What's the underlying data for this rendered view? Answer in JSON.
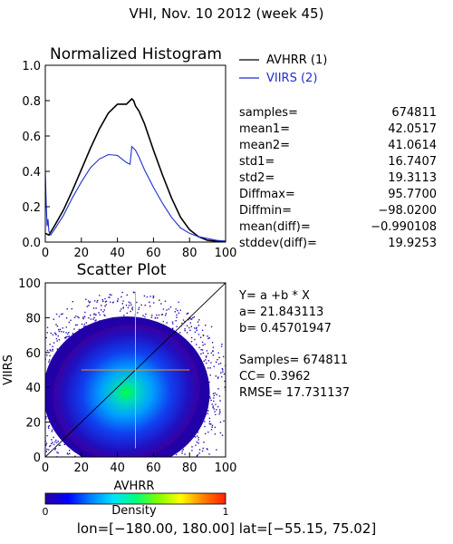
{
  "page_title": "VHI,  Nov. 10 2012 (week 45)",
  "chart_data": [
    {
      "type": "line",
      "title": "Normalized Histogram",
      "xlim": [
        0,
        100
      ],
      "ylim": [
        0,
        1.0
      ],
      "x_ticks": [
        "0",
        "20",
        "40",
        "60",
        "80",
        "100"
      ],
      "y_ticks": [
        "0.0",
        "0.2",
        "0.4",
        "0.6",
        "0.8",
        "1.0"
      ],
      "legend_position": "top-right, outside plot",
      "series": [
        {
          "name": "AVHRR (1)",
          "color": "#000000",
          "x": [
            0,
            2,
            5,
            10,
            15,
            20,
            25,
            30,
            35,
            40,
            45,
            47,
            48,
            49,
            50,
            52,
            55,
            60,
            65,
            70,
            75,
            80,
            85,
            90,
            95,
            100
          ],
          "y": [
            0.05,
            0.04,
            0.09,
            0.18,
            0.29,
            0.41,
            0.53,
            0.64,
            0.73,
            0.78,
            0.78,
            0.8,
            0.81,
            0.8,
            0.77,
            0.74,
            0.67,
            0.52,
            0.38,
            0.25,
            0.14,
            0.07,
            0.03,
            0.01,
            0.005,
            0.005
          ]
        },
        {
          "name": "VIIRS (2)",
          "color": "#1f2fd0",
          "x": [
            0,
            0.5,
            1,
            1.5,
            2,
            3,
            5,
            10,
            15,
            20,
            25,
            30,
            35,
            40,
            45,
            47,
            48,
            49,
            50,
            52,
            55,
            60,
            65,
            70,
            75,
            80,
            85,
            90,
            95,
            100
          ],
          "y": [
            0.4,
            0.22,
            0.09,
            0.13,
            0.06,
            0.04,
            0.07,
            0.15,
            0.25,
            0.34,
            0.42,
            0.47,
            0.495,
            0.49,
            0.45,
            0.44,
            0.54,
            0.53,
            0.52,
            0.48,
            0.41,
            0.31,
            0.22,
            0.14,
            0.08,
            0.05,
            0.03,
            0.02,
            0.01,
            0.005
          ]
        }
      ],
      "stats": [
        {
          "label": "samples=",
          "value": "674811"
        },
        {
          "label": "mean1=",
          "value": "42.0517"
        },
        {
          "label": "mean2=",
          "value": "41.0614"
        },
        {
          "label": "std1=",
          "value": "16.7407"
        },
        {
          "label": "std2=",
          "value": "19.3113"
        },
        {
          "label": "Diffmax=",
          "value": "95.7700"
        },
        {
          "label": "Diffmin=",
          "value": "−98.0200"
        },
        {
          "label": "mean(diff)=",
          "value": "−0.990108"
        },
        {
          "label": "stddev(diff)=",
          "value": "19.9253"
        }
      ]
    },
    {
      "type": "scatter",
      "title": "Scatter Plot",
      "xlabel": "AVHRR",
      "ylabel": "VIIRS",
      "xlim": [
        0,
        100
      ],
      "ylim": [
        0,
        100
      ],
      "x_ticks": [
        "0",
        "20",
        "40",
        "60",
        "80",
        "100"
      ],
      "y_ticks": [
        "0",
        "20",
        "40",
        "60",
        "80",
        "100"
      ],
      "density_center": [
        45,
        37
      ],
      "reference_lines": {
        "one_to_one": [
          [
            0,
            0
          ],
          [
            100,
            100
          ]
        ],
        "mean_x": 50,
        "mean_y": 50
      },
      "regression": {
        "equation": "Y= a +b * X",
        "a": "a= 21.843113",
        "b": "b= 0.45701947",
        "a_value": 21.843113,
        "b_value": 0.45701947
      },
      "stats": [
        "Samples= 674811",
        "CC=  0.3962",
        "RMSE= 17.731137"
      ]
    }
  ],
  "colorbar": {
    "label": "Density",
    "min_label": "0",
    "max_label": "1",
    "colors": [
      "#2a00a0",
      "#0000ff",
      "#0080ff",
      "#00e0ff",
      "#00ff80",
      "#80ff00",
      "#ffff00",
      "#ff8000",
      "#ff2000"
    ]
  },
  "footer": "lon=[−180.00, 180.00] lat=[−55.15, 75.02]"
}
